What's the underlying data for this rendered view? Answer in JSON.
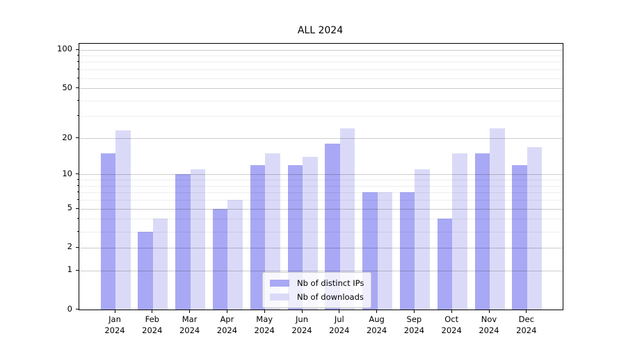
{
  "chart_data": {
    "type": "bar",
    "title": "ALL 2024",
    "categories": [
      "Jan",
      "Feb",
      "Mar",
      "Apr",
      "May",
      "Jun",
      "Jul",
      "Aug",
      "Sep",
      "Oct",
      "Nov",
      "Dec"
    ],
    "category_year": "2024",
    "series": [
      {
        "name": "Nb of distinct IPs",
        "color": "#a8a8f5",
        "values": [
          15,
          3,
          10,
          5,
          12,
          12,
          18,
          7,
          7,
          4,
          15,
          12
        ]
      },
      {
        "name": "Nb of downloads",
        "color": "#dadaf8",
        "values": [
          23,
          4,
          11,
          6,
          15,
          14,
          24,
          7,
          11,
          15,
          24,
          17
        ]
      }
    ],
    "yscale": "log1p",
    "ylim": [
      0,
      110
    ],
    "y_major_ticks": [
      0,
      1,
      2,
      5,
      10,
      20,
      50,
      100
    ],
    "y_minor_ticks": [
      3,
      4,
      6,
      7,
      8,
      9,
      30,
      40,
      60,
      70,
      80,
      90
    ],
    "grid": true,
    "legend_position": "lower center"
  }
}
